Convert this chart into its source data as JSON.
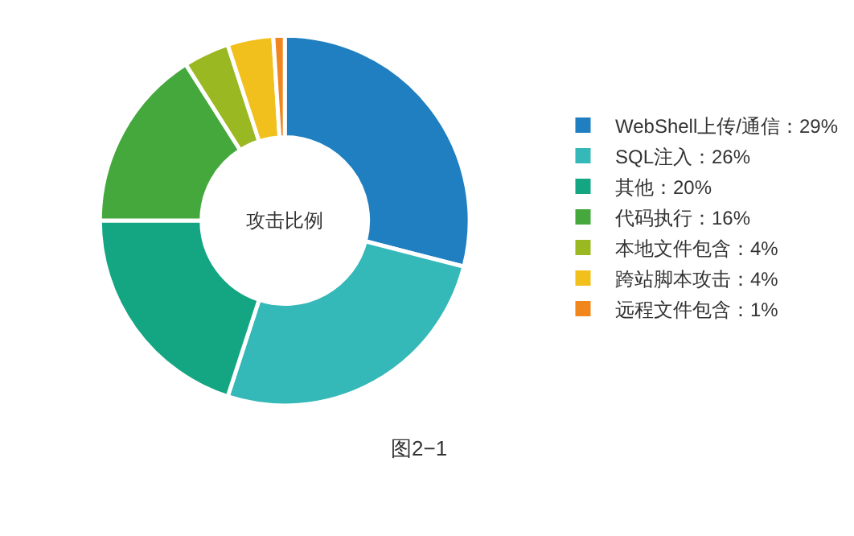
{
  "chart_data": {
    "type": "donut",
    "title": "攻击比例",
    "categories": [
      "WebShell上传/通信：29%",
      "SQL注入：26%",
      "其他：20%",
      "代码执行：16%",
      "本地文件包含：4%",
      "跨站脚本攻击：4%",
      "远程文件包含：1%"
    ],
    "values": [
      29,
      26,
      20,
      16,
      4,
      4,
      1
    ],
    "colors": [
      "#1f7fc0",
      "#35b8b8",
      "#14a683",
      "#44a83c",
      "#9ab822",
      "#f2c01c",
      "#f0861c"
    ],
    "legend": "right",
    "annotations": [
      "图2−1"
    ]
  }
}
